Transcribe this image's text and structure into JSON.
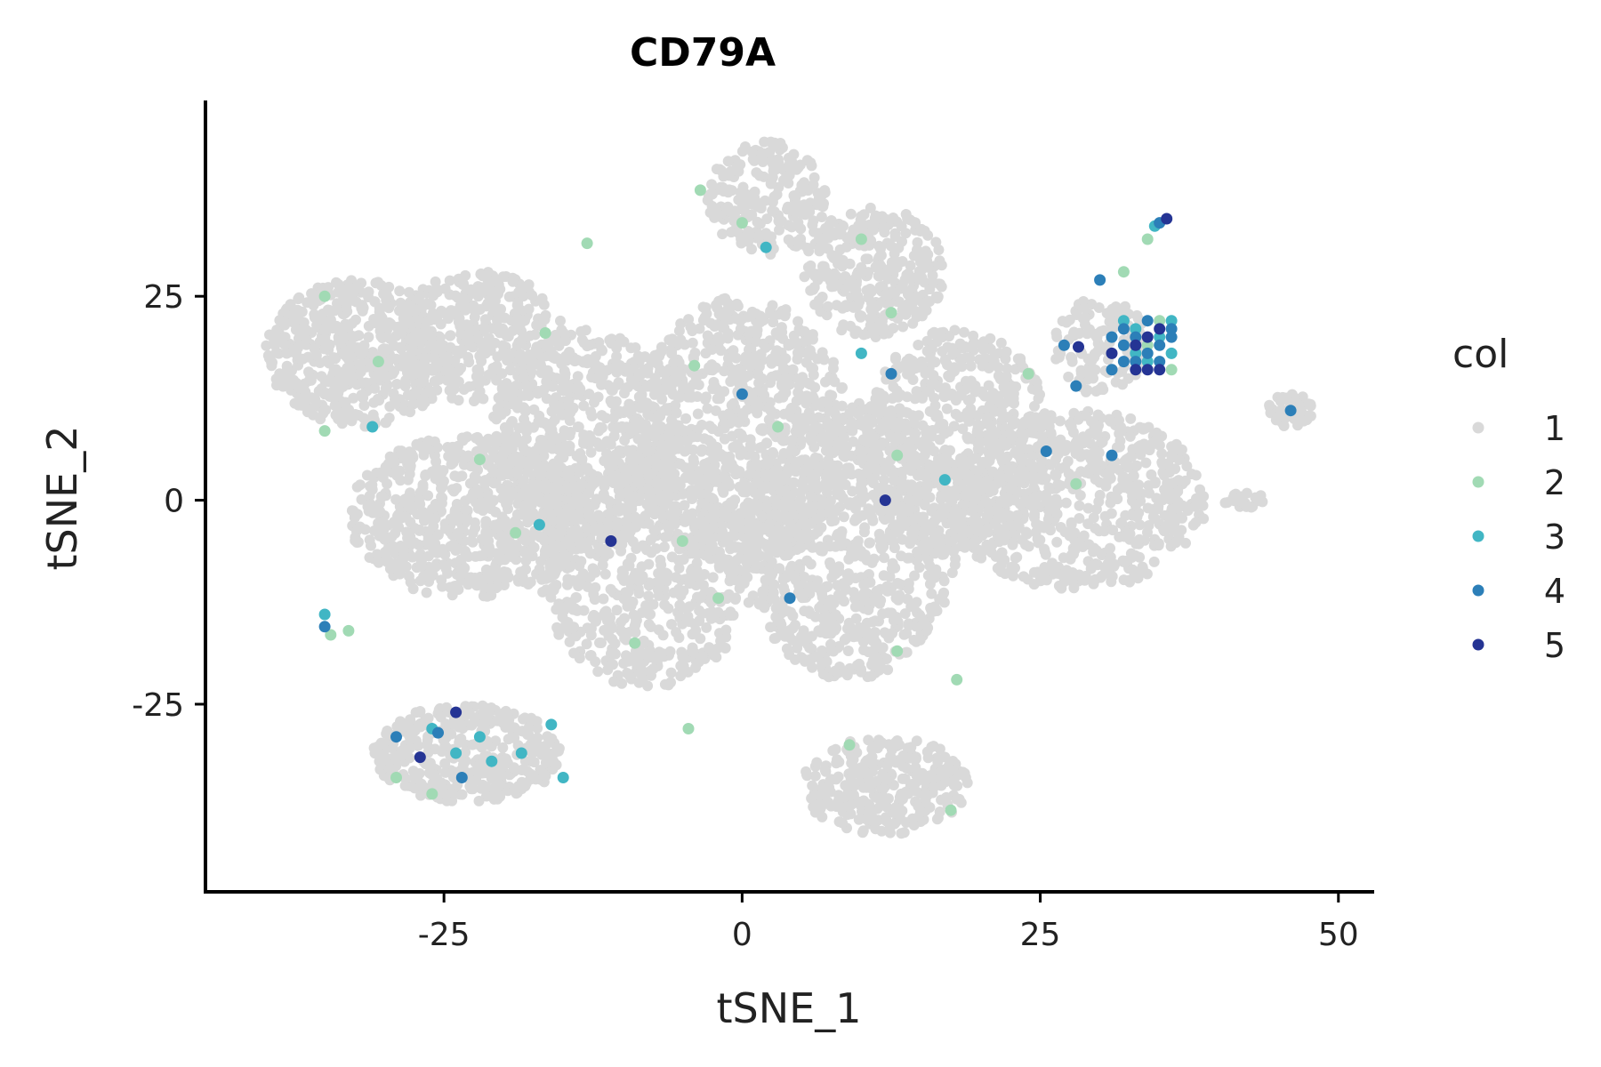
{
  "chart_data": {
    "type": "scatter",
    "title": "CD79A",
    "xlabel": "tSNE_1",
    "ylabel": "tSNE_2",
    "xlim": [
      -45,
      53
    ],
    "ylim": [
      -48,
      49
    ],
    "xticks": [
      -25,
      0,
      25,
      50
    ],
    "yticks": [
      -25,
      0,
      25
    ],
    "grid": false,
    "legend": {
      "title": "col",
      "position": "right",
      "entries": [
        {
          "label": "1",
          "color": "#d9d9d9"
        },
        {
          "label": "2",
          "color": "#a1dab4"
        },
        {
          "label": "3",
          "color": "#41b6c4"
        },
        {
          "label": "4",
          "color": "#2c7fb8"
        },
        {
          "label": "5",
          "color": "#253494"
        }
      ]
    },
    "background_regions": [
      {
        "cx": -32,
        "cy": 18,
        "rx": 8,
        "ry": 9,
        "n": 500
      },
      {
        "cx": -22,
        "cy": 20,
        "rx": 7,
        "ry": 8,
        "n": 350
      },
      {
        "cx": -23,
        "cy": -2,
        "rx": 10,
        "ry": 10,
        "n": 700
      },
      {
        "cx": -13,
        "cy": 8,
        "rx": 8,
        "ry": 13,
        "n": 600
      },
      {
        "cx": -8,
        "cy": -8,
        "rx": 9,
        "ry": 15,
        "n": 700
      },
      {
        "cx": 0,
        "cy": 8,
        "rx": 9,
        "ry": 17,
        "n": 900
      },
      {
        "cx": 2,
        "cy": 37,
        "rx": 5,
        "ry": 7,
        "n": 220
      },
      {
        "cx": 9,
        "cy": -5,
        "rx": 9,
        "ry": 17,
        "n": 800
      },
      {
        "cx": 11,
        "cy": 28,
        "rx": 6,
        "ry": 8,
        "n": 320
      },
      {
        "cx": 18,
        "cy": 7,
        "rx": 8,
        "ry": 14,
        "n": 650
      },
      {
        "cx": 28,
        "cy": 0,
        "rx": 11,
        "ry": 11,
        "n": 650
      },
      {
        "cx": 12,
        "cy": -35,
        "rx": 7,
        "ry": 6,
        "n": 300
      },
      {
        "cx": -23,
        "cy": -31,
        "rx": 8,
        "ry": 6,
        "n": 350
      },
      {
        "cx": 30,
        "cy": 19,
        "rx": 4,
        "ry": 6,
        "n": 120
      },
      {
        "cx": 46,
        "cy": 11,
        "rx": 2,
        "ry": 2,
        "n": 50
      },
      {
        "cx": 42,
        "cy": 0,
        "rx": 2,
        "ry": 1,
        "n": 20
      }
    ],
    "points": [
      {
        "x": 34,
        "y": 18,
        "c": 4
      },
      {
        "x": 33,
        "y": 19,
        "c": 5
      },
      {
        "x": 35,
        "y": 20,
        "c": 3
      },
      {
        "x": 32,
        "y": 17,
        "c": 4
      },
      {
        "x": 36,
        "y": 21,
        "c": 4
      },
      {
        "x": 34,
        "y": 16,
        "c": 5
      },
      {
        "x": 33,
        "y": 21,
        "c": 3
      },
      {
        "x": 35,
        "y": 17,
        "c": 4
      },
      {
        "x": 32,
        "y": 19,
        "c": 4
      },
      {
        "x": 36,
        "y": 18,
        "c": 3
      },
      {
        "x": 34,
        "y": 22,
        "c": 4
      },
      {
        "x": 33,
        "y": 16,
        "c": 5
      },
      {
        "x": 31,
        "y": 18,
        "c": 5
      },
      {
        "x": 35,
        "y": 22,
        "c": 2
      },
      {
        "x": 34,
        "y": 20,
        "c": 5
      },
      {
        "x": 32,
        "y": 21,
        "c": 4
      },
      {
        "x": 36,
        "y": 16,
        "c": 2
      },
      {
        "x": 33,
        "y": 18,
        "c": 3
      },
      {
        "x": 35,
        "y": 19,
        "c": 4
      },
      {
        "x": 31,
        "y": 16,
        "c": 4
      },
      {
        "x": 34,
        "y": 17,
        "c": 3
      },
      {
        "x": 36,
        "y": 20,
        "c": 4
      },
      {
        "x": 33,
        "y": 20,
        "c": 4
      },
      {
        "x": 32,
        "y": 22,
        "c": 3
      },
      {
        "x": 35,
        "y": 16,
        "c": 5
      },
      {
        "x": 31,
        "y": 20,
        "c": 4
      },
      {
        "x": 34,
        "y": 19,
        "c": 2
      },
      {
        "x": 36,
        "y": 22,
        "c": 3
      },
      {
        "x": 33,
        "y": 17,
        "c": 4
      },
      {
        "x": 35,
        "y": 21,
        "c": 5
      },
      {
        "x": 35,
        "y": 34,
        "c": 4
      },
      {
        "x": 35.6,
        "y": 34.5,
        "c": 5
      },
      {
        "x": 34.6,
        "y": 33.6,
        "c": 3
      },
      {
        "x": 30,
        "y": 27,
        "c": 4
      },
      {
        "x": 27,
        "y": 19,
        "c": 4
      },
      {
        "x": 28.2,
        "y": 18.8,
        "c": 5
      },
      {
        "x": 28,
        "y": 14,
        "c": 4
      },
      {
        "x": 25.5,
        "y": 6,
        "c": 4
      },
      {
        "x": 31,
        "y": 5.5,
        "c": 4
      },
      {
        "x": 46,
        "y": 11,
        "c": 4
      },
      {
        "x": 10,
        "y": 18,
        "c": 3
      },
      {
        "x": 12.5,
        "y": 15.5,
        "c": 4
      },
      {
        "x": 0,
        "y": 13,
        "c": 4
      },
      {
        "x": 12,
        "y": 0,
        "c": 5
      },
      {
        "x": 17,
        "y": 2.5,
        "c": 3
      },
      {
        "x": -11,
        "y": -5,
        "c": 5
      },
      {
        "x": 4,
        "y": -12,
        "c": 4
      },
      {
        "x": -17,
        "y": -3,
        "c": 3
      },
      {
        "x": 2,
        "y": 31,
        "c": 3
      },
      {
        "x": 0,
        "y": 34,
        "c": 2
      },
      {
        "x": -3.5,
        "y": 38,
        "c": 2
      },
      {
        "x": -31,
        "y": 9,
        "c": 3
      },
      {
        "x": -35,
        "y": -14,
        "c": 3
      },
      {
        "x": -35,
        "y": -15.5,
        "c": 4
      },
      {
        "x": -34.5,
        "y": -16.5,
        "c": 2
      },
      {
        "x": -33,
        "y": -16,
        "c": 2
      },
      {
        "x": -26,
        "y": -28,
        "c": 3
      },
      {
        "x": -24,
        "y": -31,
        "c": 3
      },
      {
        "x": -21,
        "y": -32,
        "c": 3
      },
      {
        "x": -23.5,
        "y": -34,
        "c": 4
      },
      {
        "x": -25.5,
        "y": -28.5,
        "c": 4
      },
      {
        "x": -29,
        "y": -29,
        "c": 4
      },
      {
        "x": -18.5,
        "y": -31,
        "c": 3
      },
      {
        "x": -16,
        "y": -27.5,
        "c": 3
      },
      {
        "x": -15,
        "y": -34,
        "c": 3
      },
      {
        "x": -27,
        "y": -31.5,
        "c": 5
      },
      {
        "x": -26,
        "y": -36,
        "c": 2
      },
      {
        "x": -29,
        "y": -34,
        "c": 2
      },
      {
        "x": -24,
        "y": -26,
        "c": 5
      },
      {
        "x": -22,
        "y": -29,
        "c": 3
      },
      {
        "x": -2,
        "y": -12,
        "c": 2
      },
      {
        "x": -5,
        "y": -5,
        "c": 2
      },
      {
        "x": -9,
        "y": -17.5,
        "c": 2
      },
      {
        "x": 3,
        "y": 9,
        "c": 2
      },
      {
        "x": -4,
        "y": 16.5,
        "c": 2
      },
      {
        "x": -16.5,
        "y": 20.5,
        "c": 2
      },
      {
        "x": -13,
        "y": 31.5,
        "c": 2
      },
      {
        "x": -30.5,
        "y": 17,
        "c": 2
      },
      {
        "x": -35,
        "y": 25,
        "c": 2
      },
      {
        "x": -35,
        "y": 8.5,
        "c": 2
      },
      {
        "x": -19,
        "y": -4,
        "c": 2
      },
      {
        "x": -22,
        "y": 5,
        "c": 2
      },
      {
        "x": 13,
        "y": 5.5,
        "c": 2
      },
      {
        "x": 18,
        "y": -22,
        "c": 2
      },
      {
        "x": 9,
        "y": -30,
        "c": 2
      },
      {
        "x": 13,
        "y": -18.5,
        "c": 2
      },
      {
        "x": 17.5,
        "y": -38,
        "c": 2
      },
      {
        "x": -4.5,
        "y": -28,
        "c": 2
      },
      {
        "x": 24,
        "y": 15.5,
        "c": 2
      },
      {
        "x": 12.5,
        "y": 23,
        "c": 2
      },
      {
        "x": 10,
        "y": 32,
        "c": 2
      },
      {
        "x": 28,
        "y": 2,
        "c": 2
      },
      {
        "x": 34,
        "y": 32,
        "c": 2
      },
      {
        "x": 32,
        "y": 28,
        "c": 2
      }
    ]
  }
}
